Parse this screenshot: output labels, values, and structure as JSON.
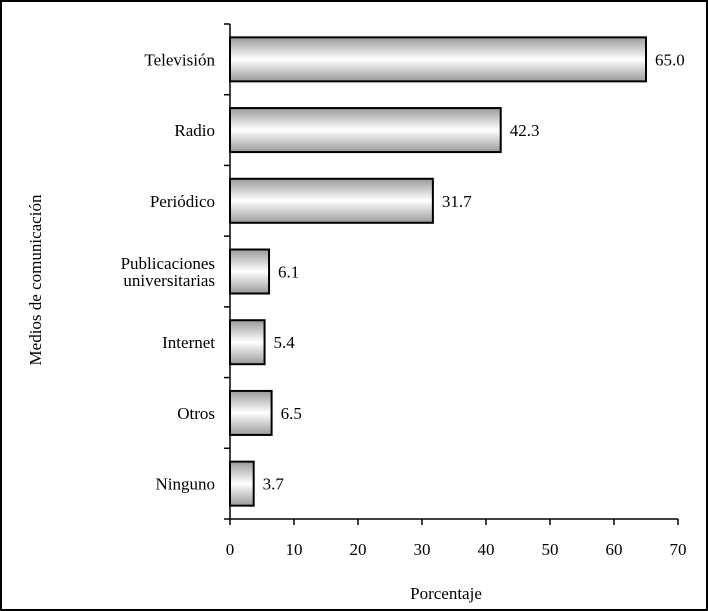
{
  "chart_data": {
    "type": "bar",
    "orientation": "horizontal",
    "categories": [
      [
        "Televisión"
      ],
      [
        "Radio"
      ],
      [
        "Periódico"
      ],
      [
        "Publicaciones",
        "universitarias"
      ],
      [
        "Internet"
      ],
      [
        "Otros"
      ],
      [
        "Ninguno"
      ]
    ],
    "values": [
      65.0,
      42.3,
      31.7,
      6.1,
      5.4,
      6.5,
      3.7
    ],
    "value_labels": [
      "65.0",
      "42.3",
      "31.7",
      "6.1",
      "5.4",
      "6.5",
      "3.7"
    ],
    "xlabel": "Porcentaje",
    "ylabel": "Medios de comunicación",
    "xlim": [
      0,
      70
    ],
    "xticks": [
      0,
      10,
      20,
      30,
      40,
      50,
      60,
      70
    ],
    "grid": false,
    "legend": "none",
    "colors": {
      "bar_light": "#ffffff",
      "bar_dark": "#9a9a9a",
      "bar_stroke": "#000000",
      "frame": "#000000"
    }
  }
}
